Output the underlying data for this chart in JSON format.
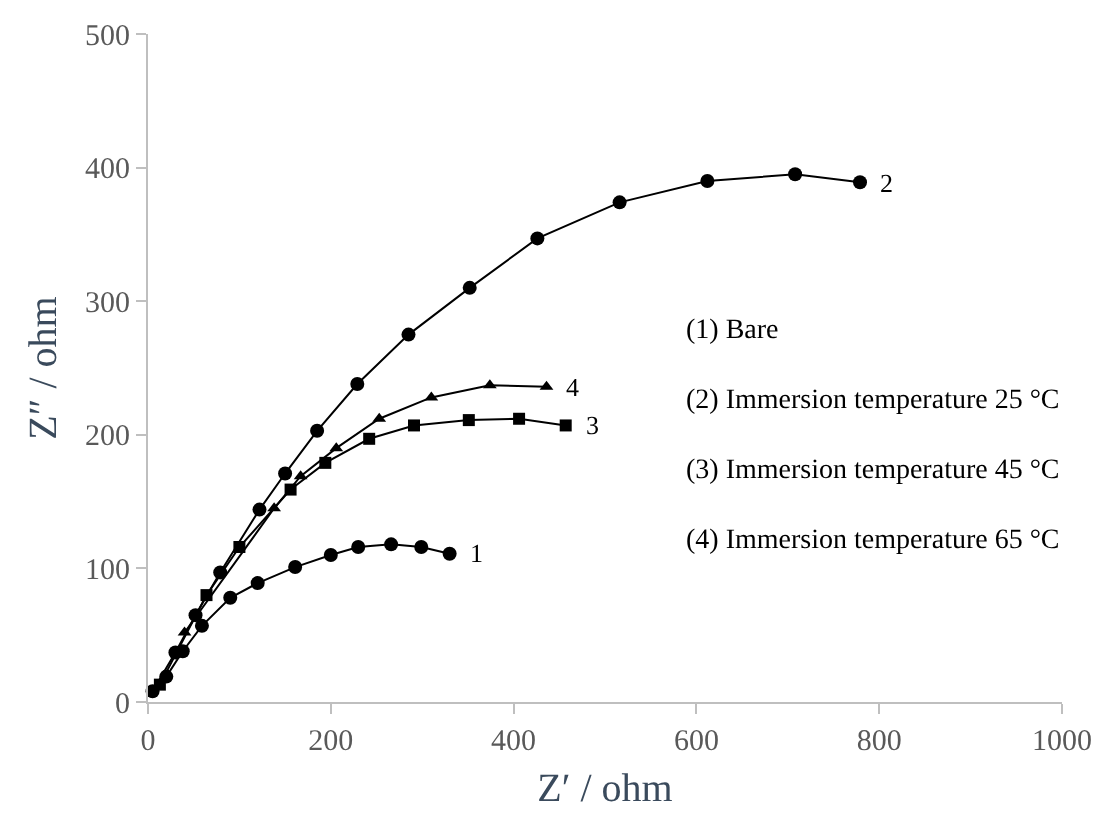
{
  "chart_data": {
    "type": "line",
    "xlabel": "Z′ / ohm",
    "ylabel": "Z″ / ohm",
    "xlim": [
      0,
      1000
    ],
    "xticks": [
      0,
      200,
      400,
      600,
      800,
      1000
    ],
    "ylim": [
      0,
      500
    ],
    "yticks": [
      0,
      100,
      200,
      300,
      400,
      500
    ],
    "grid": false,
    "legend": false,
    "line_style": "solid",
    "series": [
      {
        "name": "1",
        "color": "#000000",
        "marker": "circle",
        "x": [
          20,
          38,
          59,
          90,
          120,
          161,
          200,
          230,
          266,
          299,
          330
        ],
        "values": [
          19,
          38,
          57,
          78,
          89,
          101,
          110,
          116,
          118,
          116,
          111
        ]
      },
      {
        "name": "2",
        "color": "#000000",
        "marker": "circle",
        "x": [
          5,
          30,
          52,
          79,
          122,
          150,
          185,
          229,
          285,
          352,
          426,
          516,
          612,
          708,
          779
        ],
        "values": [
          8,
          37,
          65,
          97,
          144,
          171,
          203,
          238,
          275,
          310,
          347,
          374,
          390,
          395,
          389
        ]
      },
      {
        "name": "3",
        "color": "#000000",
        "marker": "square",
        "x": [
          13,
          64,
          100,
          156,
          194,
          242,
          291,
          351,
          406,
          457
        ],
        "values": [
          13,
          80,
          116,
          159,
          179,
          197,
          207,
          211,
          212,
          207
        ]
      },
      {
        "name": "4",
        "color": "#000000",
        "marker": "triangle",
        "x": [
          40,
          138,
          167,
          206,
          253,
          310,
          374,
          436
        ],
        "values": [
          52,
          145,
          169,
          190,
          212,
          228,
          237,
          236
        ]
      }
    ],
    "annotations": [
      "(1) Bare",
      "(2) Immersion temperature 25 °C",
      "(3) Immersion temperature 45 °C",
      "(4) Immersion temperature 65 °C"
    ]
  }
}
